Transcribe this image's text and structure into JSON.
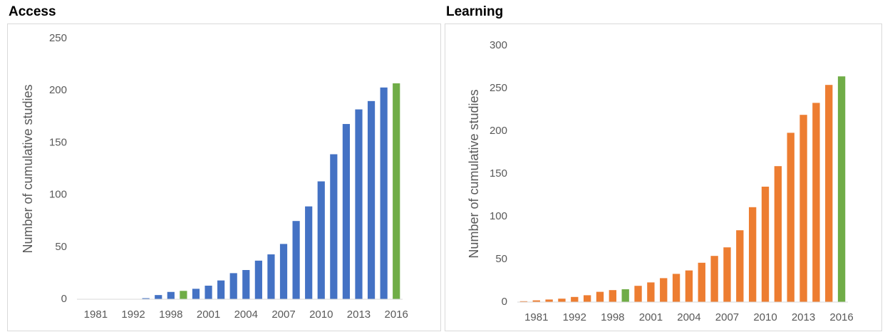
{
  "chart_data": [
    {
      "type": "bar",
      "title": "Access",
      "y_label": "Number of cumulative studies",
      "categories": [
        "1981",
        null,
        null,
        "1992",
        null,
        null,
        "1998",
        null,
        null,
        "2001",
        null,
        null,
        "2004",
        null,
        null,
        "2007",
        null,
        null,
        "2010",
        null,
        null,
        "2013",
        null,
        null,
        "2016",
        null
      ],
      "values": [
        0,
        0,
        0,
        0,
        0,
        1,
        4,
        7,
        8,
        10,
        13,
        18,
        25,
        28,
        37,
        43,
        53,
        75,
        89,
        113,
        139,
        168,
        182,
        190,
        203,
        207
      ],
      "colors": [
        "#4472c4",
        "#4472c4",
        "#4472c4",
        "#4472c4",
        "#4472c4",
        "#4472c4",
        "#4472c4",
        "#4472c4",
        "#70ad47",
        "#4472c4",
        "#4472c4",
        "#4472c4",
        "#4472c4",
        "#4472c4",
        "#4472c4",
        "#4472c4",
        "#4472c4",
        "#4472c4",
        "#4472c4",
        "#4472c4",
        "#4472c4",
        "#4472c4",
        "#4472c4",
        "#4472c4",
        "#4472c4",
        "#70ad47"
      ],
      "ylim": [
        0,
        250
      ],
      "yticks": [
        0,
        50,
        100,
        150,
        200,
        250
      ],
      "grid": false
    },
    {
      "type": "bar",
      "title": "Learning",
      "y_label": "Number of cumulative studies",
      "categories": [
        "1981",
        null,
        null,
        "1992",
        null,
        null,
        "1998",
        null,
        null,
        "2001",
        null,
        null,
        "2004",
        null,
        null,
        "2007",
        null,
        null,
        "2010",
        null,
        null,
        "2013",
        null,
        null,
        "2016",
        null
      ],
      "values": [
        1,
        2,
        3,
        4,
        6,
        8,
        12,
        14,
        15,
        19,
        23,
        28,
        33,
        37,
        46,
        54,
        64,
        84,
        111,
        135,
        159,
        198,
        219,
        233,
        254,
        264
      ],
      "colors": [
        "#ed7d31",
        "#ed7d31",
        "#ed7d31",
        "#ed7d31",
        "#ed7d31",
        "#ed7d31",
        "#ed7d31",
        "#ed7d31",
        "#70ad47",
        "#ed7d31",
        "#ed7d31",
        "#ed7d31",
        "#ed7d31",
        "#ed7d31",
        "#ed7d31",
        "#ed7d31",
        "#ed7d31",
        "#ed7d31",
        "#ed7d31",
        "#ed7d31",
        "#ed7d31",
        "#ed7d31",
        "#ed7d31",
        "#ed7d31",
        "#ed7d31",
        "#70ad47"
      ],
      "ylim": [
        0,
        300
      ],
      "yticks": [
        0,
        50,
        100,
        150,
        200,
        250,
        300
      ],
      "grid": false
    }
  ]
}
